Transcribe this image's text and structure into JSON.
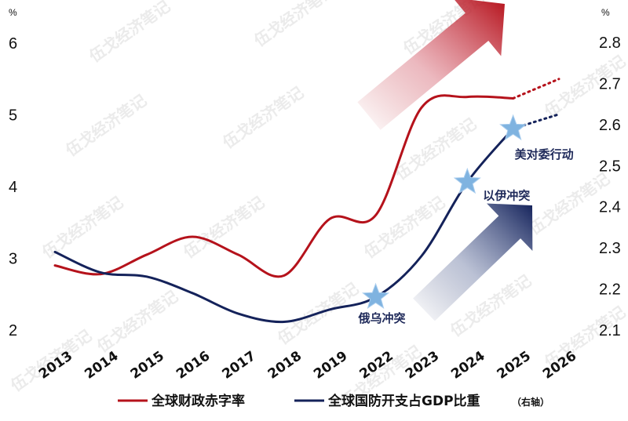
{
  "chart_data": {
    "type": "line",
    "x": [
      "2013",
      "2014",
      "2015",
      "2016",
      "2017",
      "2018",
      "2019",
      "2022",
      "2023",
      "2024",
      "2025",
      "2026"
    ],
    "left_axis": {
      "unit": "%",
      "ylim": [
        2,
        6
      ],
      "ticks": [
        "2",
        "3",
        "4",
        "5",
        "6"
      ]
    },
    "right_axis": {
      "unit": "%",
      "ylim": [
        2.1,
        2.8
      ],
      "ticks": [
        "2.1",
        "2.2",
        "2.3",
        "2.4",
        "2.5",
        "2.6",
        "2.7",
        "2.8"
      ]
    },
    "series": [
      {
        "name": "全球财政赤字率",
        "axis": "left",
        "color": "#b5121b",
        "values": [
          2.9,
          2.78,
          3.05,
          3.3,
          3.05,
          2.76,
          3.55,
          3.6,
          5.1,
          5.25,
          5.23,
          5.5
        ],
        "projected_from_index": 10
      },
      {
        "name": "全球国防开支占GDP比重",
        "name_note": "（右轴）",
        "axis": "right",
        "color": "#14225a",
        "values": [
          2.29,
          2.24,
          2.23,
          2.19,
          2.14,
          2.12,
          2.15,
          2.18,
          2.28,
          2.46,
          2.59,
          2.625
        ],
        "projected_from_index": 10
      }
    ],
    "annotations": [
      {
        "label": "俄乌冲突",
        "series": 1,
        "x_index": 7,
        "marker": "star"
      },
      {
        "label": "以伊冲突",
        "series": 1,
        "x_index": 9,
        "marker": "star"
      },
      {
        "label": "美对委行动",
        "series": 1,
        "x_index": 10,
        "marker": "star"
      }
    ],
    "arrows": [
      {
        "color": "#b5121b",
        "direction": "up-right"
      },
      {
        "color": "#14225a",
        "direction": "up-right"
      }
    ],
    "grid": false,
    "legend_position": "bottom",
    "title": "",
    "xlabel": "",
    "ylabel": ""
  },
  "watermark": "伍戈经济笔记"
}
